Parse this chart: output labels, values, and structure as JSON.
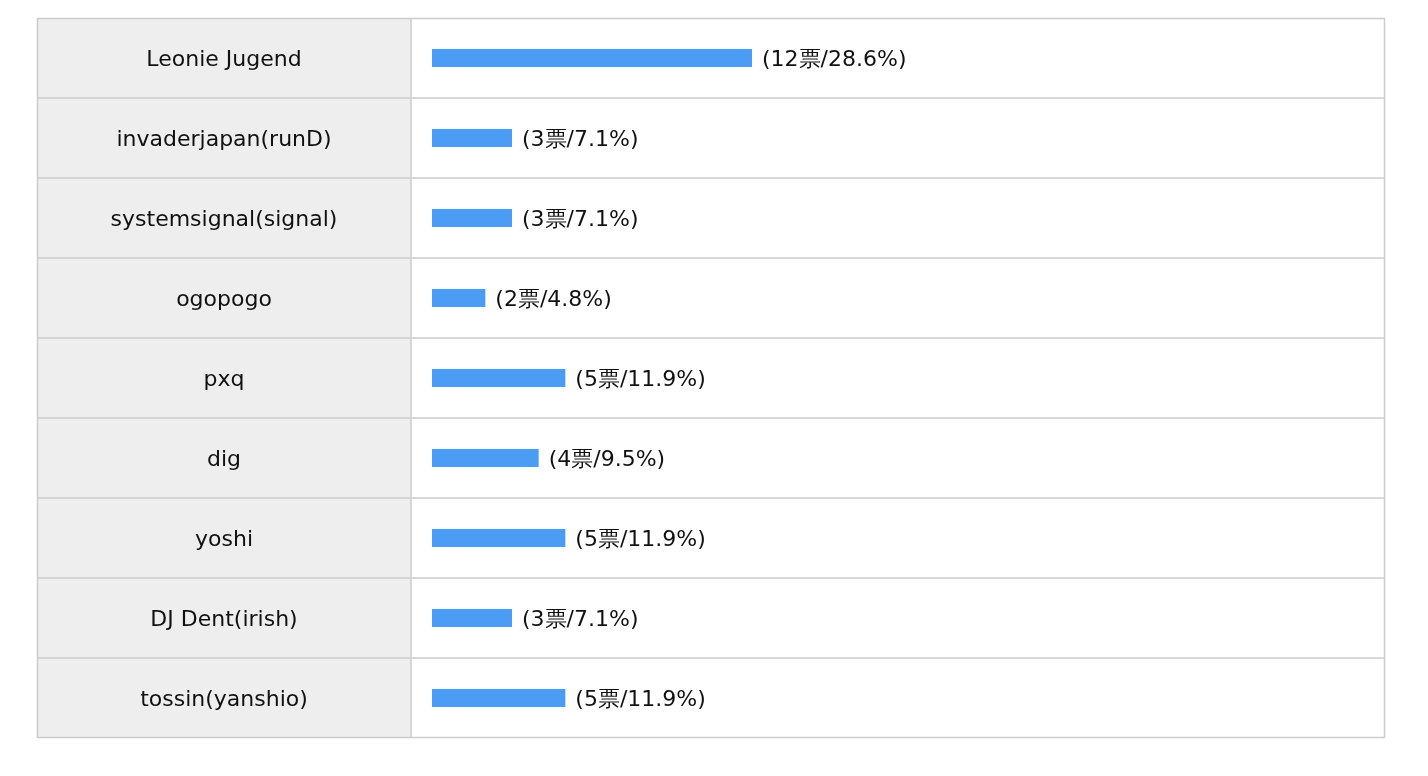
{
  "chart_data": {
    "type": "bar",
    "orientation": "horizontal",
    "categories": [
      "Leonie Jugend",
      "invaderjapan(runD)",
      "systemsignal(signal)",
      "ogopogo",
      "pxq",
      "dig",
      "yoshi",
      "DJ Dent(irish)",
      "tossin(yanshio)"
    ],
    "values": [
      12,
      3,
      3,
      2,
      5,
      4,
      5,
      3,
      5
    ],
    "color": "#4a9cf5",
    "value_labels": [
      "(12票/28.6%)",
      "(3票/7.1%)",
      "(3票/7.1%)",
      "(2票/4.8%)",
      "(5票/11.9%)",
      "(4票/9.5%)",
      "(5票/11.9%)",
      "(3票/7.1%)",
      "(5票/11.9%)"
    ]
  }
}
